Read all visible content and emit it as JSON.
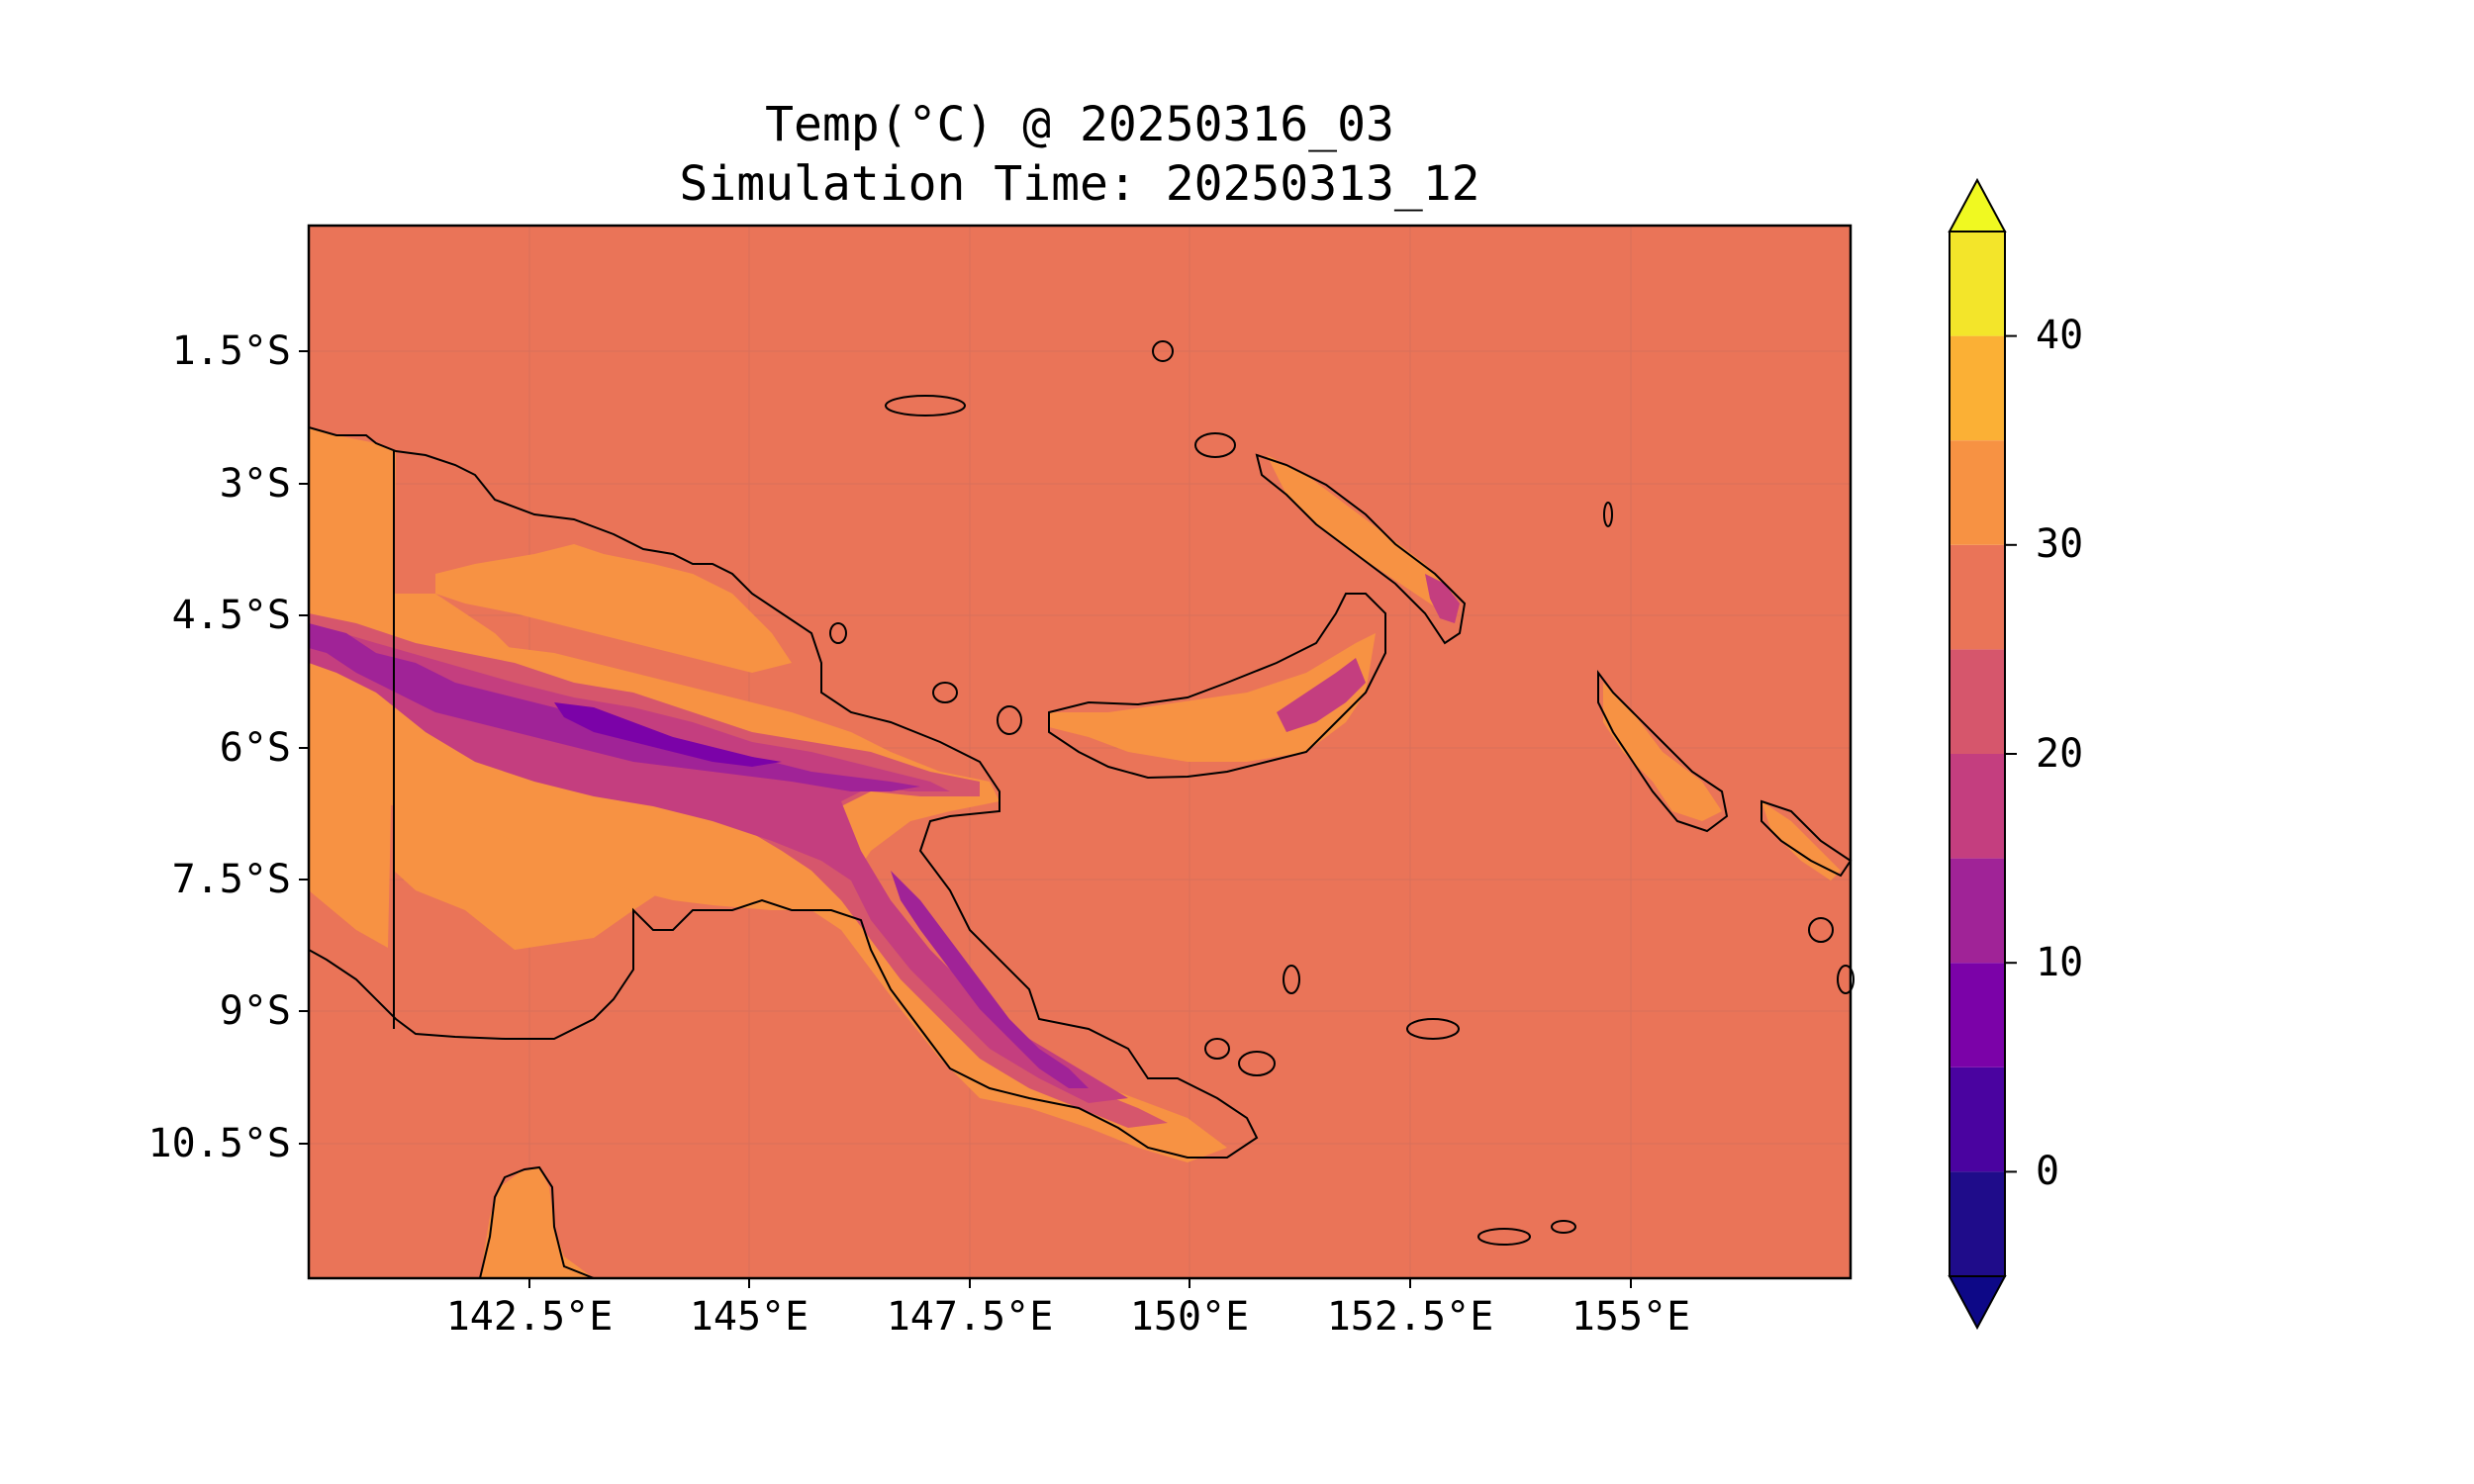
{
  "figure": {
    "title": "Temp(°C) @ 20250316_03",
    "subtitle": "Simulation Time: 20250313_12"
  },
  "map": {
    "lon_ticks": [
      "142.5°E",
      "145°E",
      "147.5°E",
      "150°E",
      "152.5°E",
      "155°E"
    ],
    "lat_ticks": [
      "1.5°S",
      "3°S",
      "4.5°S",
      "6°S",
      "7.5°S",
      "9°S",
      "10.5°S"
    ],
    "extent": {
      "lon": [
        140,
        157.5
      ],
      "lat": [
        -12,
        0
      ]
    },
    "background_color": "#ea7458",
    "gridlines": true
  },
  "colorbar": {
    "ticks": [
      "0",
      "10",
      "20",
      "30",
      "40"
    ],
    "levels": [
      -5,
      0,
      5,
      10,
      15,
      20,
      25,
      30,
      35,
      40,
      45
    ],
    "colors": [
      "#1f0c8a",
      "#4a03a0",
      "#7b02a8",
      "#a02397",
      "#c43e7f",
      "#d6566c",
      "#ea7458",
      "#f79243",
      "#fbb035",
      "#f3e52a"
    ],
    "extend": "both",
    "under_color": "#0d0887",
    "over_color": "#f0f921"
  },
  "chart_data": {
    "type": "heatmap",
    "variable": "Temp(°C)",
    "valid_time": "20250316_03",
    "simulation_time": "20250313_12",
    "dominant_range": [
      25,
      30
    ],
    "highland_range": [
      10,
      20
    ]
  }
}
